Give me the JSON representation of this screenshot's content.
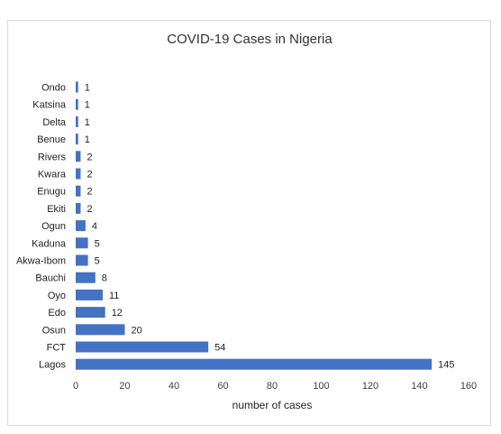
{
  "chart_data": {
    "type": "bar",
    "orientation": "horizontal",
    "title": "COVID-19 Cases in Nigeria",
    "xlabel": "number of cases",
    "ylabel": "",
    "categories": [
      "Ondo",
      "Katsina",
      "Delta",
      "Benue",
      "Rivers",
      "Kwara",
      "Enugu",
      "Ekiti",
      "Ogun",
      "Kaduna",
      "Akwa-Ibom",
      "Bauchi",
      "Oyo",
      "Edo",
      "Osun",
      "FCT",
      "Lagos"
    ],
    "values": [
      1,
      1,
      1,
      1,
      2,
      2,
      2,
      2,
      4,
      5,
      5,
      8,
      11,
      12,
      20,
      54,
      145
    ],
    "xlim": [
      0,
      160
    ],
    "xticks": [
      0,
      20,
      40,
      60,
      80,
      100,
      120,
      140,
      160
    ],
    "data_labels": true,
    "grid": false,
    "legend": "none",
    "bar_color": "#4472c4"
  }
}
